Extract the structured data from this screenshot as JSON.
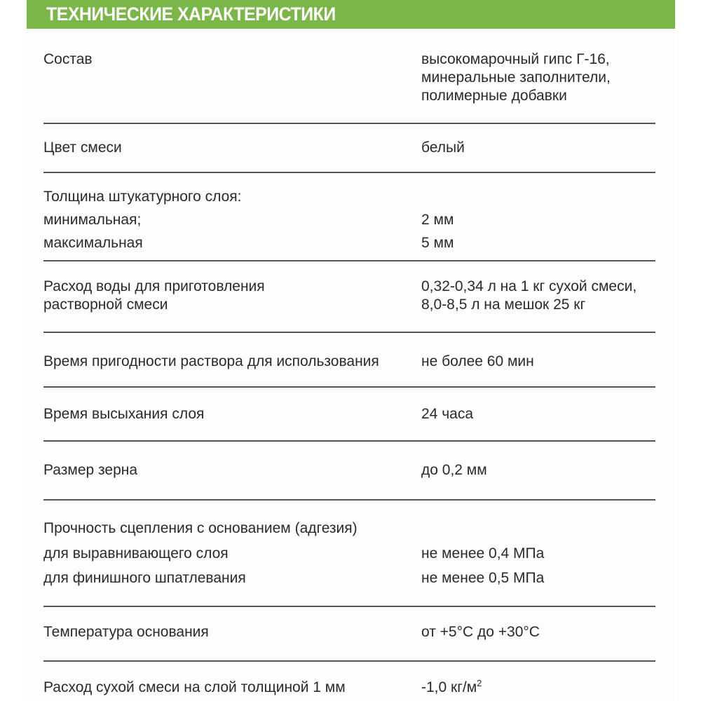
{
  "header": {
    "title": "ТЕХНИЧЕСКИЕ ХАРАКТЕРИСТИКИ",
    "color": "#7ab648"
  },
  "rows": [
    {
      "label": [
        "Состав"
      ],
      "value": [
        "высокомарочный гипс Г-16,",
        "минеральные заполнители,",
        "полимерные добавки"
      ]
    },
    {
      "label": [
        "Цвет смеси"
      ],
      "value": [
        "белый"
      ]
    },
    {
      "label": [
        "Толщина штукатурного слоя:",
        "минимальная;",
        "максимальная"
      ],
      "value": [
        "",
        "2 мм",
        "5 мм"
      ]
    },
    {
      "label": [
        "Расход воды для приготовления",
        "растворной смеси"
      ],
      "value": [
        "0,32-0,34 л на 1 кг сухой смеси,",
        "8,0-8,5 л на мешок 25 кг"
      ]
    },
    {
      "label": [
        "Время пригодности раствора для использования"
      ],
      "value": [
        "не более 60 мин"
      ]
    },
    {
      "label": [
        "Время высыхания слоя"
      ],
      "value": [
        "24 часа"
      ]
    },
    {
      "label": [
        "Размер зерна"
      ],
      "value": [
        "до 0,2 мм"
      ]
    },
    {
      "label": [
        "Прочность сцепления с основанием (адгезия)",
        "для выравнивающего слоя",
        "для финишного шпатлевания"
      ],
      "value": [
        "",
        "не менее 0,4 МПа",
        "не менее 0,5 МПа"
      ]
    },
    {
      "label": [
        "Температура основания"
      ],
      "value": [
        "от +5°С до +30°С"
      ]
    },
    {
      "label": [
        "Расход сухой смеси на слой толщиной 1 мм"
      ],
      "value": [
        "-1,0 кг/м"
      ],
      "value_sup": "2"
    }
  ]
}
